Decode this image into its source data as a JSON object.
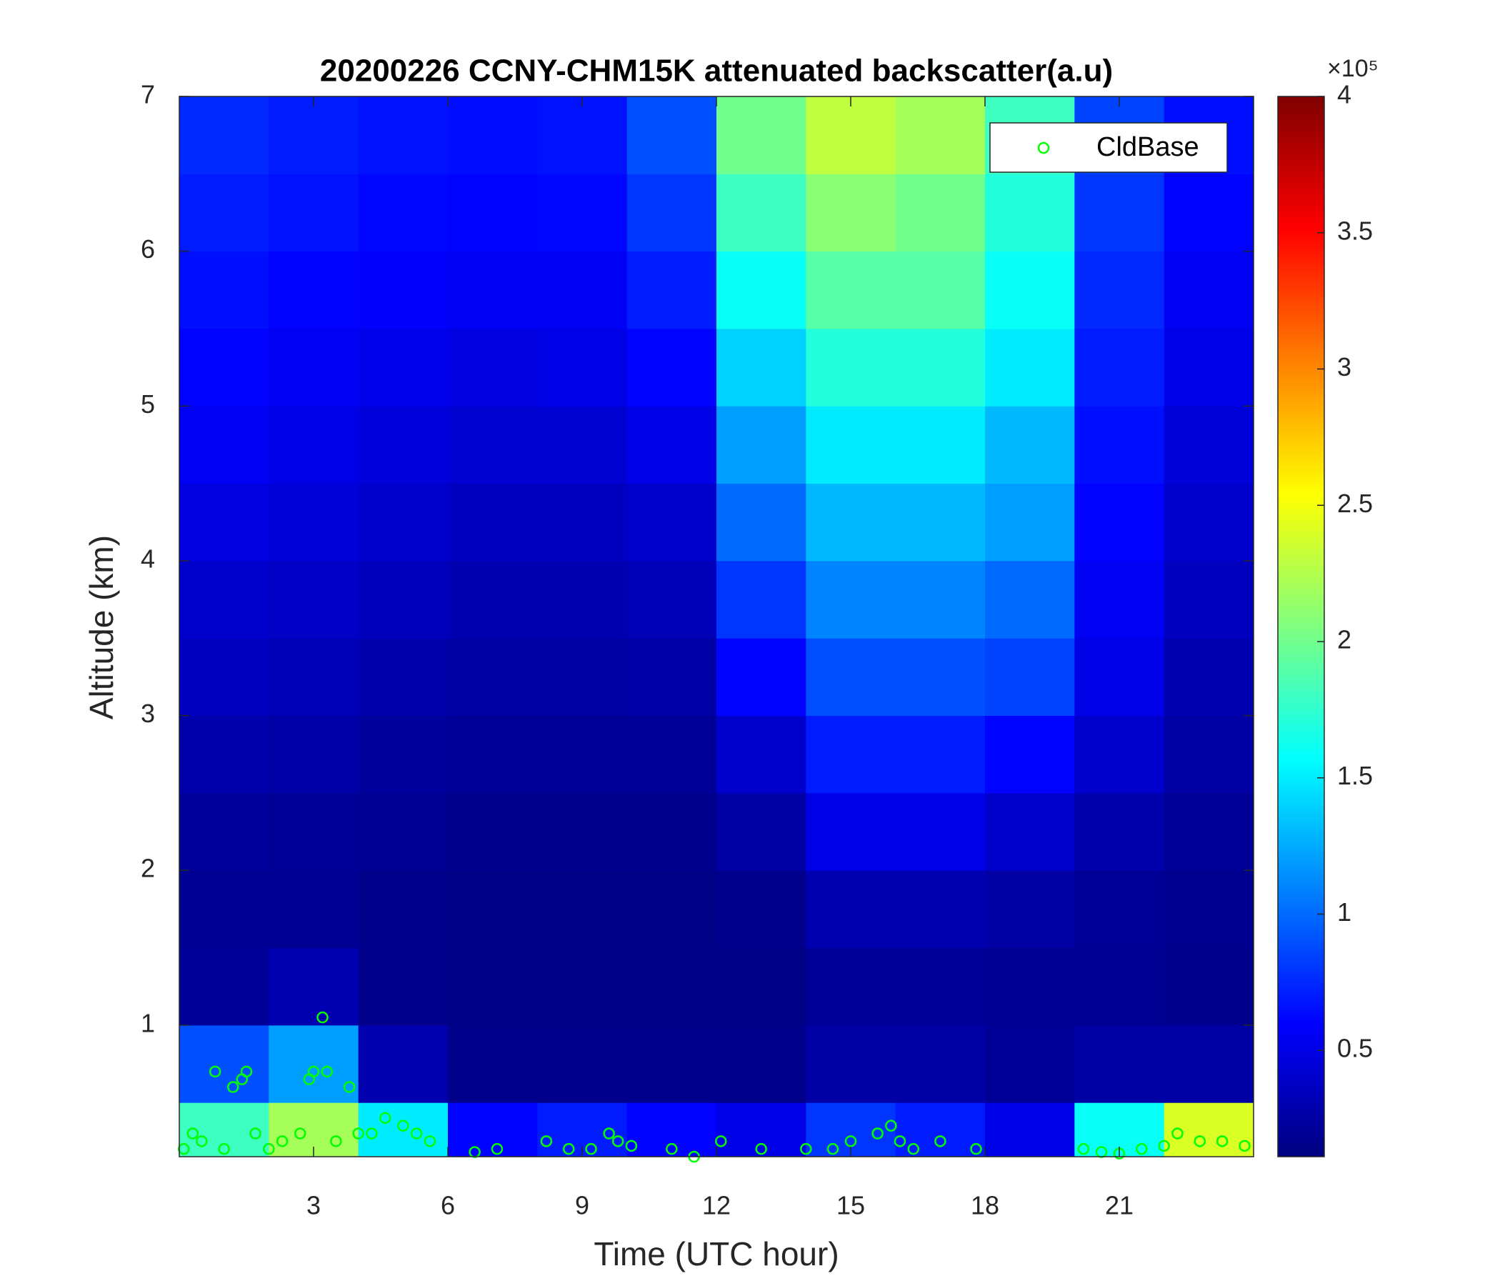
{
  "chart_data": {
    "type": "heatmap",
    "title": "20200226 CCNY-CHM15K attenuated backscatter(a.u)",
    "x_label": "Time (UTC hour)",
    "y_label": "Altitude (km)",
    "xlim": [
      0,
      24
    ],
    "xticks": [
      3,
      6,
      9,
      12,
      15,
      18,
      21
    ],
    "ylim": [
      0.15,
      7
    ],
    "yticks": [
      1,
      2,
      3,
      4,
      5,
      6,
      7
    ],
    "colormap": "jet",
    "clim": [
      0.11,
      4
    ],
    "cticks": [
      0.5,
      1,
      1.5,
      2,
      2.5,
      3,
      3.5,
      4
    ],
    "colorbar_scale": "×10⁵",
    "x_edges": [
      0,
      2,
      4,
      6,
      8,
      10,
      12,
      14,
      16,
      18,
      20,
      22,
      24
    ],
    "y_edges": [
      0.15,
      0.5,
      1,
      1.5,
      2,
      2.5,
      3,
      3.5,
      4,
      4.5,
      5,
      5.5,
      6,
      6.5,
      7
    ],
    "z": [
      [
        1.8,
        2.2,
        1.5,
        0.6,
        0.7,
        0.6,
        0.5,
        0.8,
        0.7,
        0.5,
        1.6,
        2.4
      ],
      [
        0.9,
        1.2,
        0.3,
        0.15,
        0.15,
        0.15,
        0.15,
        0.25,
        0.25,
        0.2,
        0.25,
        0.25
      ],
      [
        0.2,
        0.3,
        0.15,
        0.14,
        0.14,
        0.14,
        0.14,
        0.2,
        0.2,
        0.18,
        0.18,
        0.16
      ],
      [
        0.18,
        0.18,
        0.15,
        0.14,
        0.14,
        0.14,
        0.16,
        0.3,
        0.3,
        0.25,
        0.2,
        0.17
      ],
      [
        0.22,
        0.2,
        0.18,
        0.16,
        0.16,
        0.16,
        0.25,
        0.5,
        0.5,
        0.4,
        0.28,
        0.2
      ],
      [
        0.28,
        0.26,
        0.22,
        0.2,
        0.2,
        0.2,
        0.4,
        0.7,
        0.7,
        0.6,
        0.4,
        0.25
      ],
      [
        0.35,
        0.32,
        0.28,
        0.25,
        0.25,
        0.26,
        0.6,
        0.9,
        0.9,
        0.85,
        0.5,
        0.3
      ],
      [
        0.4,
        0.38,
        0.34,
        0.3,
        0.3,
        0.32,
        0.8,
        1.1,
        1.1,
        1.0,
        0.55,
        0.35
      ],
      [
        0.48,
        0.45,
        0.4,
        0.36,
        0.36,
        0.4,
        1.0,
        1.3,
        1.3,
        1.2,
        0.6,
        0.4
      ],
      [
        0.55,
        0.5,
        0.46,
        0.42,
        0.42,
        0.5,
        1.2,
        1.5,
        1.5,
        1.3,
        0.65,
        0.45
      ],
      [
        0.6,
        0.56,
        0.52,
        0.48,
        0.5,
        0.6,
        1.4,
        1.7,
        1.7,
        1.5,
        0.7,
        0.5
      ],
      [
        0.65,
        0.6,
        0.58,
        0.55,
        0.56,
        0.7,
        1.6,
        1.9,
        1.9,
        1.6,
        0.75,
        0.55
      ],
      [
        0.7,
        0.66,
        0.62,
        0.6,
        0.62,
        0.8,
        1.8,
        2.1,
        2.0,
        1.7,
        0.8,
        0.6
      ],
      [
        0.75,
        0.7,
        0.66,
        0.64,
        0.66,
        0.9,
        2.0,
        2.3,
        2.2,
        1.8,
        0.85,
        0.65
      ]
    ],
    "series": [
      {
        "name": "CldBase",
        "type": "scatter",
        "color": "#00ff00",
        "x": [
          0.1,
          0.3,
          0.5,
          0.8,
          1.0,
          1.2,
          1.4,
          1.5,
          1.7,
          2.0,
          2.3,
          2.7,
          2.9,
          3.0,
          3.2,
          3.3,
          3.5,
          3.8,
          4.0,
          4.3,
          4.6,
          5.0,
          5.3,
          5.6,
          6.6,
          7.1,
          8.2,
          8.7,
          9.2,
          9.6,
          9.8,
          10.1,
          11.0,
          11.5,
          12.1,
          13.0,
          14.0,
          14.6,
          15.0,
          15.6,
          15.9,
          16.1,
          16.4,
          17.0,
          17.8,
          20.2,
          20.6,
          21.0,
          21.5,
          22.0,
          22.3,
          22.8,
          23.3,
          23.8
        ],
        "values": [
          0.2,
          0.3,
          0.25,
          0.7,
          0.2,
          0.6,
          0.65,
          0.7,
          0.3,
          0.2,
          0.25,
          0.3,
          0.65,
          0.7,
          1.05,
          0.7,
          0.25,
          0.6,
          0.3,
          0.3,
          0.4,
          0.35,
          0.3,
          0.25,
          0.18,
          0.2,
          0.25,
          0.2,
          0.2,
          0.3,
          0.25,
          0.22,
          0.2,
          0.15,
          0.25,
          0.2,
          0.2,
          0.2,
          0.25,
          0.3,
          0.35,
          0.25,
          0.2,
          0.25,
          0.2,
          0.2,
          0.18,
          0.17,
          0.2,
          0.22,
          0.3,
          0.25,
          0.25,
          0.22
        ]
      }
    ],
    "legend": "upper right"
  }
}
